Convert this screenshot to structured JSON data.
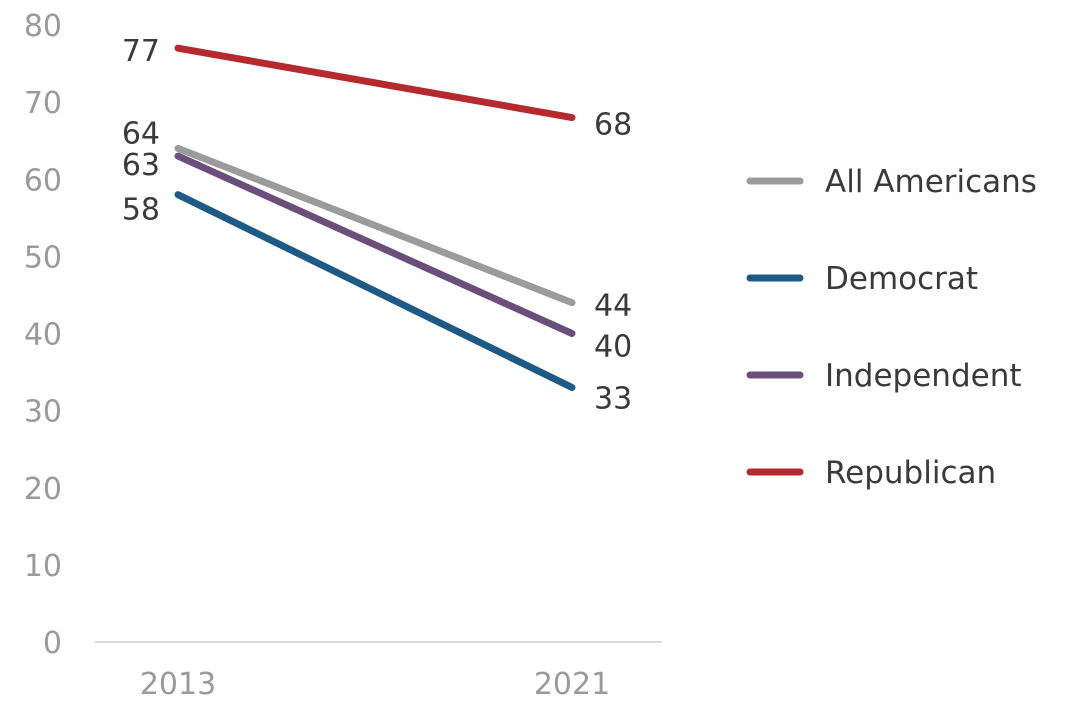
{
  "chart_data": {
    "type": "line",
    "title": "",
    "xlabel": "",
    "ylabel": "",
    "x": [
      "2013",
      "2021"
    ],
    "ylim": [
      0,
      80
    ],
    "yticks": [
      0,
      10,
      20,
      30,
      40,
      50,
      60,
      70,
      80
    ],
    "grid": false,
    "legend_position": "right",
    "series": [
      {
        "name": "All Americans",
        "values": [
          64,
          44
        ],
        "color": "#9b9b9b"
      },
      {
        "name": "Democrat",
        "values": [
          58,
          33
        ],
        "color": "#1d5a85"
      },
      {
        "name": "Independent",
        "values": [
          63,
          40
        ],
        "color": "#6a4f7a"
      },
      {
        "name": "Republican",
        "values": [
          77,
          68
        ],
        "color": "#b52a2e"
      }
    ]
  }
}
